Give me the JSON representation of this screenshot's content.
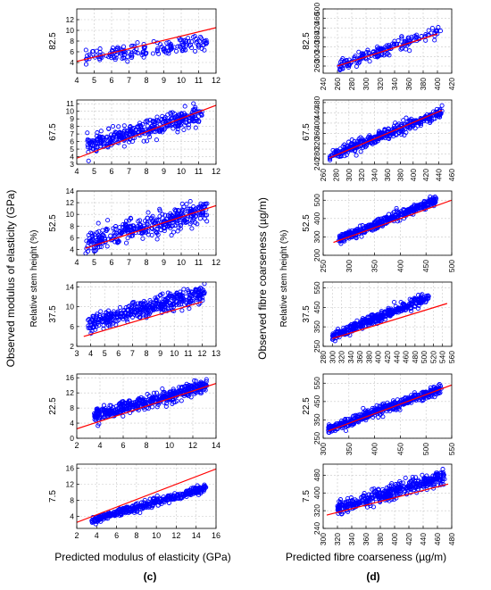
{
  "figure": {
    "left_panel": {
      "ylabel": "Observed modulus of elasticity (GPa)",
      "xlabel": "Predicted modulus of elasticity (GPa)",
      "height_label": "Relative stem height (%)",
      "caption": "(c)"
    },
    "right_panel": {
      "ylabel": "Observed fibre coarseness (µg/m)",
      "xlabel": "Predicted fibre coarseness (µg/m)",
      "height_label": "Relative stem height (%)",
      "caption": "(d)"
    }
  },
  "colors": {
    "points": "#0000ff",
    "fit_line": "#ff0000",
    "grid": "#c8c8c8"
  },
  "chart_data": [
    {
      "type": "scatter",
      "panel": "c",
      "height": "82.5",
      "xticks": [
        4,
        5,
        6,
        7,
        8,
        9,
        10,
        11,
        12
      ],
      "yticks": [
        4,
        6,
        8,
        10,
        12
      ],
      "xlim": [
        4,
        12
      ],
      "ylim": [
        2,
        14
      ],
      "fit": [
        [
          4,
          4.2
        ],
        [
          12,
          10.5
        ]
      ],
      "cloud": {
        "x": [
          4.5,
          11.5
        ],
        "center": [
          [
            4.5,
            4.8
          ],
          [
            11.5,
            8.0
          ]
        ],
        "spread": 1.3,
        "n": 160
      },
      "grid": true
    },
    {
      "type": "scatter",
      "panel": "c",
      "height": "67.5",
      "xticks": [
        4,
        5,
        6,
        7,
        8,
        9,
        10,
        11,
        12
      ],
      "yticks": [
        3,
        4,
        5,
        6,
        7,
        8,
        9,
        10,
        11
      ],
      "xlim": [
        4,
        12
      ],
      "ylim": [
        3,
        11.5
      ],
      "fit": [
        [
          4,
          3.8
        ],
        [
          12,
          10.8
        ]
      ],
      "cloud": {
        "x": [
          4.6,
          11.2
        ],
        "center": [
          [
            4.6,
            5.5
          ],
          [
            11.2,
            9.6
          ]
        ],
        "spread": 1.1,
        "n": 350
      },
      "grid": true
    },
    {
      "type": "scatter",
      "panel": "c",
      "height": "52.5",
      "xticks": [
        4,
        5,
        6,
        7,
        8,
        9,
        10,
        11,
        12
      ],
      "yticks": [
        4,
        6,
        8,
        10,
        12,
        14
      ],
      "xlim": [
        4,
        12
      ],
      "ylim": [
        3,
        14
      ],
      "fit": [
        [
          4.5,
          4.2
        ],
        [
          12,
          11.5
        ]
      ],
      "cloud": {
        "x": [
          4.5,
          11.5
        ],
        "center": [
          [
            4.5,
            5.0
          ],
          [
            11.5,
            10.8
          ]
        ],
        "spread": 1.7,
        "n": 380
      },
      "grid": true
    },
    {
      "type": "scatter",
      "panel": "c",
      "height": "37.5",
      "xticks": [
        3,
        4,
        5,
        6,
        7,
        8,
        9,
        10,
        11,
        12,
        13
      ],
      "yticks": [
        2,
        6,
        10,
        14
      ],
      "xlim": [
        3,
        13
      ],
      "ylim": [
        2,
        15
      ],
      "fit": [
        [
          3.5,
          4.0
        ],
        [
          12,
          11.0
        ]
      ],
      "cloud": {
        "x": [
          3.8,
          12.2
        ],
        "center": [
          [
            3.8,
            6.5
          ],
          [
            12.2,
            12.8
          ]
        ],
        "spread": 1.6,
        "n": 420
      },
      "grid": true
    },
    {
      "type": "scatter",
      "panel": "c",
      "height": "22.5",
      "xticks": [
        2,
        4,
        6,
        8,
        10,
        12,
        14
      ],
      "yticks": [
        0,
        4,
        8,
        12,
        16
      ],
      "xlim": [
        2,
        14
      ],
      "ylim": [
        0,
        17
      ],
      "fit": [
        [
          2,
          2.5
        ],
        [
          14,
          14.5
        ]
      ],
      "cloud": {
        "x": [
          3.5,
          13.2
        ],
        "center": [
          [
            3.5,
            6.0
          ],
          [
            13.2,
            13.8
          ]
        ],
        "spread": 1.6,
        "n": 450
      },
      "grid": true
    },
    {
      "type": "scatter",
      "panel": "c",
      "height": "7.5",
      "xticks": [
        2,
        4,
        6,
        8,
        10,
        12,
        14,
        16
      ],
      "yticks": [
        4,
        8,
        12,
        16
      ],
      "xlim": [
        2,
        16
      ],
      "ylim": [
        1,
        17
      ],
      "fit": [
        [
          2,
          2.5
        ],
        [
          16,
          15.8
        ]
      ],
      "cloud": {
        "x": [
          3.5,
          15.0
        ],
        "center": [
          [
            3.5,
            3.0
          ],
          [
            15.0,
            11.0
          ]
        ],
        "spread": 0.9,
        "n": 420
      },
      "grid": true
    },
    {
      "type": "scatter",
      "panel": "d",
      "height": "82.5",
      "xticks": [
        240,
        260,
        280,
        300,
        320,
        340,
        360,
        380,
        400,
        420
      ],
      "yticks": [
        260,
        300,
        340,
        380,
        420,
        460,
        500
      ],
      "xlim": [
        240,
        420
      ],
      "ylim": [
        230,
        500
      ],
      "fit": [
        [
          260,
          260
        ],
        [
          400,
          395
        ]
      ],
      "cloud": {
        "x": [
          262,
          405
        ],
        "center": [
          [
            262,
            265
          ],
          [
            405,
            410
          ]
        ],
        "spread": 22,
        "n": 170
      },
      "grid": true
    },
    {
      "type": "scatter",
      "panel": "d",
      "height": "67.5",
      "xticks": [
        260,
        280,
        300,
        320,
        340,
        360,
        380,
        400,
        420,
        440,
        460
      ],
      "yticks": [
        240,
        280,
        320,
        360,
        400,
        440,
        480
      ],
      "xlim": [
        260,
        460
      ],
      "ylim": [
        240,
        490
      ],
      "fit": [
        [
          270,
          265
        ],
        [
          445,
          450
        ]
      ],
      "cloud": {
        "x": [
          270,
          445
        ],
        "center": [
          [
            270,
            270
          ],
          [
            445,
            445
          ]
        ],
        "spread": 20,
        "n": 360
      },
      "grid": true
    },
    {
      "type": "scatter",
      "panel": "d",
      "height": "52.5",
      "xticks": [
        250,
        300,
        350,
        400,
        450,
        500
      ],
      "yticks": [
        200,
        300,
        400,
        500
      ],
      "xlim": [
        250,
        500
      ],
      "ylim": [
        200,
        550
      ],
      "fit": [
        [
          270,
          270
        ],
        [
          500,
          500
        ]
      ],
      "cloud": {
        "x": [
          280,
          470
        ],
        "center": [
          [
            280,
            285
          ],
          [
            470,
            500
          ]
        ],
        "spread": 22,
        "n": 400
      },
      "grid": true
    },
    {
      "type": "scatter",
      "panel": "d",
      "height": "37.5",
      "xticks": [
        280,
        300,
        320,
        340,
        360,
        380,
        400,
        420,
        440,
        460,
        480,
        500,
        520,
        540,
        560
      ],
      "yticks": [
        250,
        350,
        450,
        550
      ],
      "xlim": [
        280,
        560
      ],
      "ylim": [
        250,
        580
      ],
      "fit": [
        [
          300,
          290
        ],
        [
          550,
          470
        ]
      ],
      "cloud": {
        "x": [
          300,
          510
        ],
        "center": [
          [
            300,
            300
          ],
          [
            510,
            505
          ]
        ],
        "spread": 22,
        "n": 420
      },
      "grid": true
    },
    {
      "type": "scatter",
      "panel": "d",
      "height": "22.5",
      "xticks": [
        300,
        350,
        400,
        450,
        500,
        550
      ],
      "yticks": [
        250,
        350,
        450,
        550
      ],
      "xlim": [
        300,
        550
      ],
      "ylim": [
        250,
        600
      ],
      "fit": [
        [
          310,
          290
        ],
        [
          550,
          540
        ]
      ],
      "cloud": {
        "x": [
          310,
          530
        ],
        "center": [
          [
            310,
            300
          ],
          [
            530,
            520
          ]
        ],
        "spread": 25,
        "n": 450
      },
      "grid": true
    },
    {
      "type": "scatter",
      "panel": "d",
      "height": "7.5",
      "xticks": [
        300,
        320,
        340,
        360,
        380,
        400,
        420,
        440,
        460,
        480
      ],
      "yticks": [
        240,
        320,
        400,
        480
      ],
      "xlim": [
        300,
        480
      ],
      "ylim": [
        240,
        530
      ],
      "fit": [
        [
          305,
          300
        ],
        [
          475,
          440
        ]
      ],
      "cloud": {
        "x": [
          320,
          470
        ],
        "center": [
          [
            320,
            330
          ],
          [
            470,
            475
          ]
        ],
        "spread": 28,
        "n": 430
      },
      "grid": true
    }
  ]
}
